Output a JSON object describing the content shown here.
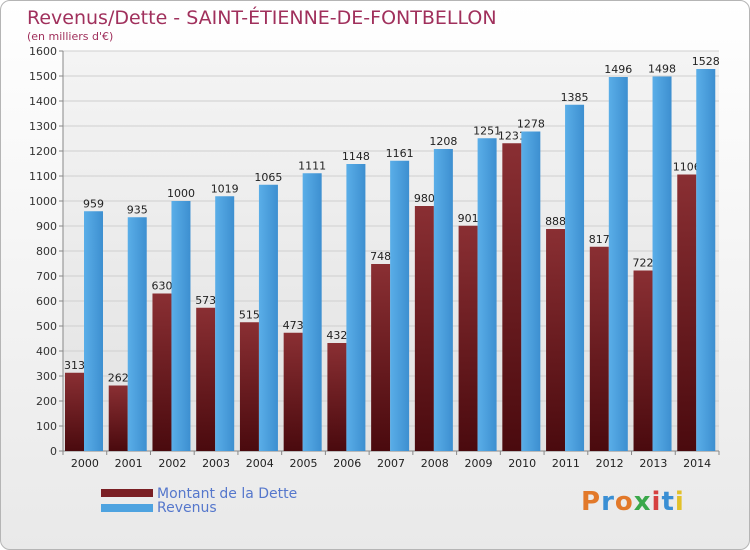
{
  "chart_data": {
    "type": "bar",
    "title": "Revenus/Dette - SAINT-ÉTIENNE-DE-FONTBELLON",
    "subtitle": "(en milliers d'€)",
    "categories": [
      "2000",
      "2001",
      "2002",
      "2003",
      "2004",
      "2005",
      "2006",
      "2007",
      "2008",
      "2009",
      "2010",
      "2011",
      "2012",
      "2013",
      "2014"
    ],
    "series": [
      {
        "name": "Montant de la Dette",
        "color": "#7a1f24",
        "values": [
          313,
          262,
          630,
          573,
          515,
          473,
          432,
          748,
          980,
          901,
          1231,
          888,
          817,
          722,
          1106
        ]
      },
      {
        "name": "Revenus",
        "color": "#4ea3e0",
        "values": [
          959,
          935,
          1000,
          1019,
          1065,
          1111,
          1148,
          1161,
          1208,
          1251,
          1278,
          1385,
          1496,
          1498,
          1528
        ]
      }
    ],
    "ylim": [
      0,
      1600
    ],
    "yticks": [
      0,
      100,
      200,
      300,
      400,
      500,
      600,
      700,
      800,
      900,
      1000,
      1100,
      1200,
      1300,
      1400,
      1500,
      1600
    ],
    "grid": true,
    "legend": "bottom-left"
  },
  "logo_text": "Proxiti"
}
